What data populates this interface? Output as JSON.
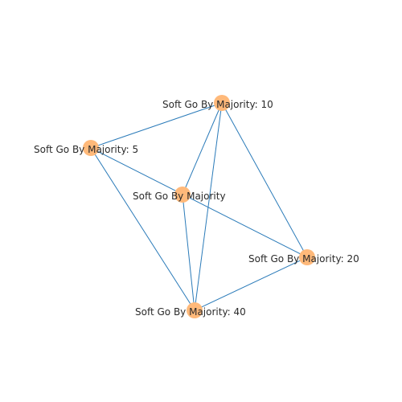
{
  "graph": {
    "node_color": "#ffb97a",
    "edge_color": "#2b7bb9",
    "background": "#ffffff",
    "nodes": [
      {
        "id": "n10",
        "label": "Soft Go By Majority: 10"
      },
      {
        "id": "n5",
        "label": "Soft Go By Majority: 5"
      },
      {
        "id": "nmaj",
        "label": "Soft Go By Majority"
      },
      {
        "id": "n20",
        "label": "Soft Go By Majority: 20"
      },
      {
        "id": "n40",
        "label": "Soft Go By Majority: 40"
      }
    ],
    "edges": [
      [
        "n5",
        "n10"
      ],
      [
        "n10",
        "nmaj"
      ],
      [
        "n10",
        "n40"
      ],
      [
        "n10",
        "n20"
      ],
      [
        "n5",
        "n20"
      ],
      [
        "n5",
        "n40"
      ],
      [
        "nmaj",
        "n40"
      ],
      [
        "n40",
        "n20"
      ]
    ]
  }
}
